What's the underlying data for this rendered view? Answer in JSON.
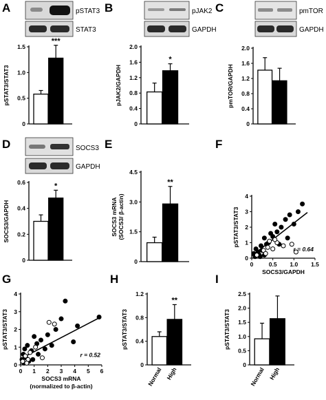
{
  "chart_data": [
    {
      "panel": "A",
      "type": "bar",
      "blot": {
        "top_label": "pSTAT3",
        "bottom_label": "STAT3"
      },
      "categories": [
        "",
        ""
      ],
      "values": [
        0.58,
        1.28
      ],
      "errors": [
        0.07,
        0.25
      ],
      "fills": [
        "#ffffff",
        "#000000"
      ],
      "significance": "***",
      "ylabel": "pSTAT3/STAT3",
      "ylim": [
        0,
        1.5
      ],
      "yticks": [
        "0",
        "0.5",
        "1.0",
        "1.5"
      ],
      "ytick_values": [
        0,
        0.5,
        1.0,
        1.5
      ],
      "xlabels": []
    },
    {
      "panel": "B",
      "type": "bar",
      "blot": {
        "top_label": "pJAK2",
        "bottom_label": "GAPDH"
      },
      "categories": [
        "",
        ""
      ],
      "values": [
        0.83,
        1.38
      ],
      "errors": [
        0.23,
        0.18
      ],
      "fills": [
        "#ffffff",
        "#000000"
      ],
      "significance": "*",
      "ylabel": "pJAK2/GAPDH",
      "ylim": [
        0,
        2.0
      ],
      "yticks": [
        "0",
        "0.4",
        "0.8",
        "1.2",
        "1.6",
        "2.0"
      ],
      "ytick_values": [
        0,
        0.4,
        0.8,
        1.2,
        1.6,
        2.0
      ],
      "xlabels": []
    },
    {
      "panel": "C",
      "type": "bar",
      "blot": {
        "top_label": "pmTOR",
        "bottom_label": "GAPDH"
      },
      "categories": [
        "",
        ""
      ],
      "values": [
        1.42,
        1.14
      ],
      "errors": [
        0.33,
        0.33
      ],
      "fills": [
        "#ffffff",
        "#000000"
      ],
      "significance": "",
      "ylabel": "pmTOR/GAPDH",
      "ylim": [
        0,
        2.0
      ],
      "yticks": [
        "0",
        "0.4",
        "0.8",
        "1.2",
        "1.6",
        "2.0"
      ],
      "ytick_values": [
        0,
        0.4,
        0.8,
        1.2,
        1.6,
        2.0
      ],
      "xlabels": []
    },
    {
      "panel": "D",
      "type": "bar",
      "blot": {
        "top_label": "SOCS3",
        "bottom_label": "GAPDH"
      },
      "categories": [
        "",
        ""
      ],
      "values": [
        0.3,
        0.48
      ],
      "errors": [
        0.05,
        0.06
      ],
      "fills": [
        "#ffffff",
        "#000000"
      ],
      "significance": "*",
      "ylabel": "SOCS3/GAPDH",
      "ylim": [
        0,
        0.6
      ],
      "yticks": [
        "0",
        "0.2",
        "0.4",
        "0.6"
      ],
      "ytick_values": [
        0,
        0.2,
        0.4,
        0.6
      ],
      "xlabels": []
    },
    {
      "panel": "E",
      "type": "bar",
      "categories": [
        "",
        ""
      ],
      "values": [
        0.95,
        2.9
      ],
      "errors": [
        0.28,
        0.88
      ],
      "fills": [
        "#ffffff",
        "#000000"
      ],
      "significance": "**",
      "ylabel": "SOCS3 mRNA",
      "ylabel2": "(SOCS3/ β-actin)",
      "ylim": [
        0,
        4.5
      ],
      "yticks": [
        "0",
        "1.5",
        "3.0",
        "4.5"
      ],
      "ytick_values": [
        0,
        1.5,
        3.0,
        4.5
      ],
      "xlabels": []
    },
    {
      "panel": "F",
      "type": "scatter",
      "xlabel": "SOCS3/GAPDH",
      "ylabel": "pSTAT3/STAT3",
      "xlim": [
        0,
        1.5
      ],
      "ylim": [
        0,
        4
      ],
      "xticks": [
        "0",
        "0.5",
        "1.0",
        "1.5"
      ],
      "xtick_values": [
        0,
        0.5,
        1.0,
        1.5
      ],
      "yticks": [
        "0",
        "1",
        "2",
        "3",
        "4"
      ],
      "ytick_values": [
        0,
        1,
        2,
        3,
        4
      ],
      "r_label": "r = 0.64",
      "fit": {
        "x": [
          0.0,
          1.32
        ],
        "y": [
          0.15,
          2.95
        ]
      },
      "series": [
        {
          "fill": "#000000",
          "x": [
            0.05,
            0.08,
            0.1,
            0.15,
            0.18,
            0.22,
            0.25,
            0.3,
            0.35,
            0.4,
            0.45,
            0.5,
            0.55,
            0.6,
            0.7,
            0.8,
            0.9,
            1.0,
            1.1,
            1.2,
            0.85,
            0.65,
            0.3,
            0.2
          ],
          "y": [
            0.3,
            0.1,
            0.6,
            0.4,
            0.2,
            0.8,
            0.5,
            1.3,
            0.9,
            1.0,
            1.6,
            1.4,
            2.2,
            1.7,
            2.0,
            2.5,
            2.8,
            2.2,
            3.0,
            3.5,
            1.3,
            0.9,
            0.2,
            0.1
          ]
        },
        {
          "fill": "#ffffff",
          "x": [
            0.12,
            0.28,
            0.38,
            0.42,
            0.5,
            0.6,
            0.75,
            0.95,
            1.05,
            0.33,
            0.55
          ],
          "y": [
            0.2,
            0.5,
            0.7,
            1.1,
            0.6,
            1.0,
            0.8,
            0.9,
            0.4,
            0.3,
            1.2
          ]
        }
      ]
    },
    {
      "panel": "G",
      "type": "scatter",
      "xlabel": "SOCS3 mRNA",
      "xlabel2": "(normalized to β-actin)",
      "ylabel": "pSTAT3/STAT3",
      "xlim": [
        0,
        6
      ],
      "ylim": [
        0,
        4
      ],
      "xticks": [
        "0",
        "1",
        "2",
        "3",
        "4",
        "5",
        "6"
      ],
      "xtick_values": [
        0,
        1,
        2,
        3,
        4,
        5,
        6
      ],
      "yticks": [
        "0",
        "1",
        "2",
        "3",
        "4"
      ],
      "ytick_values": [
        0,
        1,
        2,
        3,
        4
      ],
      "r_label": "r = 0.52",
      "fit": {
        "x": [
          0.0,
          5.8
        ],
        "y": [
          0.35,
          2.65
        ]
      },
      "series": [
        {
          "fill": "#000000",
          "x": [
            0.1,
            0.2,
            0.3,
            0.4,
            0.5,
            0.6,
            0.8,
            1.0,
            1.2,
            1.5,
            1.8,
            2.0,
            2.3,
            2.6,
            3.0,
            3.3,
            3.9,
            4.2,
            5.8,
            1.3,
            0.9,
            0.25
          ],
          "y": [
            0.3,
            0.6,
            0.9,
            0.4,
            1.1,
            0.2,
            0.8,
            1.6,
            1.2,
            1.4,
            0.9,
            1.7,
            1.1,
            2.0,
            2.6,
            3.6,
            1.3,
            2.2,
            2.7,
            0.6,
            0.3,
            0.1
          ]
        },
        {
          "fill": "#ffffff",
          "x": [
            0.15,
            0.35,
            0.55,
            0.7,
            1.1,
            1.6,
            2.1,
            2.5,
            0.45
          ],
          "y": [
            0.2,
            0.5,
            0.3,
            0.7,
            1.0,
            0.4,
            2.4,
            2.3,
            0.1
          ]
        }
      ]
    },
    {
      "panel": "H",
      "type": "bar",
      "categories": [
        "Normal",
        "High"
      ],
      "values": [
        0.48,
        0.77
      ],
      "errors": [
        0.08,
        0.25
      ],
      "fills": [
        "#ffffff",
        "#000000"
      ],
      "significance": "**",
      "ylabel": "pSTAT3/STAT3",
      "ylim": [
        0,
        1.2
      ],
      "yticks": [
        "0",
        "0.4",
        "0.8",
        "1.2"
      ],
      "ytick_values": [
        0,
        0.4,
        0.8,
        1.2
      ],
      "xlabels": [
        "Normal",
        "High"
      ]
    },
    {
      "panel": "I",
      "type": "bar",
      "categories": [
        "Normal",
        "High"
      ],
      "values": [
        0.92,
        1.63
      ],
      "errors": [
        0.55,
        0.8
      ],
      "fills": [
        "#ffffff",
        "#000000"
      ],
      "significance": "",
      "ylabel": "pSTAT3/STAT3",
      "ylim": [
        0,
        2.5
      ],
      "yticks": [
        "0",
        "0.5",
        "1.0",
        "1.5",
        "2.0",
        "2.5"
      ],
      "ytick_values": [
        0,
        0.5,
        1.0,
        1.5,
        2.0,
        2.5
      ],
      "xlabels": [
        "Normal",
        "High"
      ]
    }
  ]
}
